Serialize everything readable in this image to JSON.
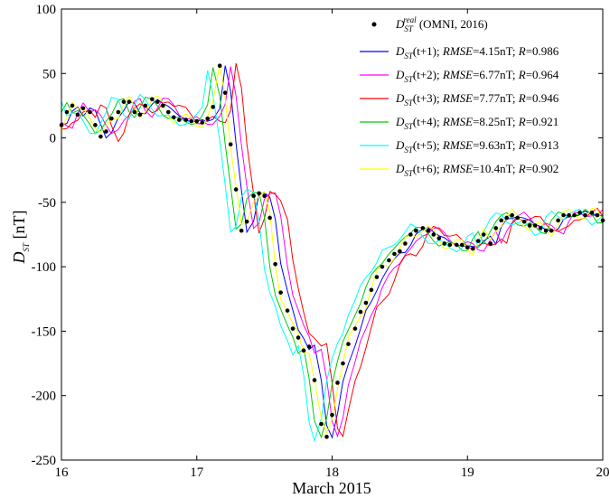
{
  "chart_data": {
    "type": "line",
    "xlabel": "March 2015",
    "ylabel": "D_ST [nT]",
    "xlim": [
      16,
      20
    ],
    "ylim": [
      -250,
      100
    ],
    "xticks": [
      16,
      17,
      18,
      19,
      20
    ],
    "yticks": [
      -250,
      -200,
      -150,
      -100,
      -50,
      0,
      50,
      100
    ],
    "grid": false,
    "legend_position": "top-right",
    "observed": {
      "name": "D_ST^real (OMNI, 2016)",
      "legend_parts": [
        "D",
        "ST",
        "real",
        " (OMNI, 2016)"
      ],
      "color": "#000000",
      "x": [
        16.0,
        16.04,
        16.08,
        16.12,
        16.16,
        16.21,
        16.25,
        16.29,
        16.33,
        16.37,
        16.42,
        16.46,
        16.5,
        16.54,
        16.58,
        16.62,
        16.67,
        16.71,
        16.75,
        16.79,
        16.83,
        16.87,
        16.92,
        16.96,
        17.0,
        17.04,
        17.08,
        17.12,
        17.17,
        17.21,
        17.25,
        17.29,
        17.33,
        17.37,
        17.42,
        17.46,
        17.5,
        17.54,
        17.58,
        17.62,
        17.67,
        17.71,
        17.75,
        17.79,
        17.83,
        17.87,
        17.92,
        17.96,
        18.0,
        18.04,
        18.08,
        18.12,
        18.17,
        18.21,
        18.25,
        18.29,
        18.33,
        18.37,
        18.42,
        18.46,
        18.5,
        18.54,
        18.58,
        18.62,
        18.67,
        18.71,
        18.75,
        18.79,
        18.83,
        18.87,
        18.92,
        18.96,
        19.0,
        19.04,
        19.08,
        19.12,
        19.17,
        19.21,
        19.25,
        19.29,
        19.33,
        19.37,
        19.42,
        19.46,
        19.5,
        19.54,
        19.58,
        19.62,
        19.67,
        19.71,
        19.75,
        19.79,
        19.83,
        19.87,
        19.92,
        19.96,
        20.0
      ],
      "y": [
        10,
        20,
        25,
        18,
        23,
        20,
        10,
        1,
        5,
        15,
        20,
        28,
        28,
        20,
        18,
        25,
        30,
        28,
        25,
        20,
        16,
        14,
        14,
        13,
        13,
        12,
        15,
        24,
        56,
        35,
        -5,
        -40,
        -72,
        -65,
        -45,
        -43,
        -45,
        -62,
        -98,
        -120,
        -134,
        -148,
        -155,
        -165,
        -162,
        -188,
        -222,
        -232,
        -215,
        -190,
        -175,
        -160,
        -148,
        -135,
        -128,
        -118,
        -108,
        -100,
        -95,
        -90,
        -88,
        -82,
        -75,
        -72,
        -70,
        -72,
        -75,
        -78,
        -82,
        -83,
        -83,
        -83,
        -85,
        -86,
        -80,
        -75,
        -82,
        -70,
        -64,
        -62,
        -60,
        -62,
        -65,
        -68,
        -68,
        -70,
        -72,
        -72,
        -64,
        -60,
        -60,
        -60,
        -58,
        -60,
        -58,
        -60,
        -64
      ]
    },
    "series": [
      {
        "name": "D_ST(t+1); RMSE=4.15nT; R=0.986",
        "legend_parts": [
          "D",
          "ST",
          "(t+1); ",
          "RMSE",
          "=4.15nT; ",
          "R",
          "=0.986"
        ],
        "color": "#0000ff",
        "shift": 1,
        "noise": 0.5
      },
      {
        "name": "D_ST(t+2); RMSE=6.77nT; R=0.964",
        "legend_parts": [
          "D",
          "ST",
          "(t+2); ",
          "RMSE",
          "=6.77nT; ",
          "R",
          "=0.964"
        ],
        "color": "#ff00ff",
        "shift": 2,
        "noise": 1.0
      },
      {
        "name": "D_ST(t+3); RMSE=7.77nT; R=0.946",
        "legend_parts": [
          "D",
          "ST",
          "(t+3); ",
          "RMSE",
          "=7.77nT; ",
          "R",
          "=0.946"
        ],
        "color": "#ff0000",
        "shift": 3,
        "noise": 1.5
      },
      {
        "name": "D_ST(t+4); RMSE=8.25nT; R=0.921",
        "legend_parts": [
          "D",
          "ST",
          "(t+4); ",
          "RMSE",
          "=8.25nT; ",
          "R",
          "=0.921"
        ],
        "color": "#00cc00",
        "shift": -1,
        "noise": 1.0
      },
      {
        "name": "D_ST(t+5); RMSE=9.63nT; R=0.913",
        "legend_parts": [
          "D",
          "ST",
          "(t+5); ",
          "RMSE",
          "=9.63nT; ",
          "R",
          "=0.913"
        ],
        "color": "#00ffff",
        "shift": -2,
        "noise": 1.5
      },
      {
        "name": "D_ST(t+6); RMSE=10.4nT; R=0.902",
        "legend_parts": [
          "D",
          "ST",
          "(t+6); ",
          "RMSE",
          "=10.4nT; ",
          "R",
          "=0.902"
        ],
        "color": "#ffff00",
        "shift": 0,
        "noise": 2.0
      }
    ]
  }
}
